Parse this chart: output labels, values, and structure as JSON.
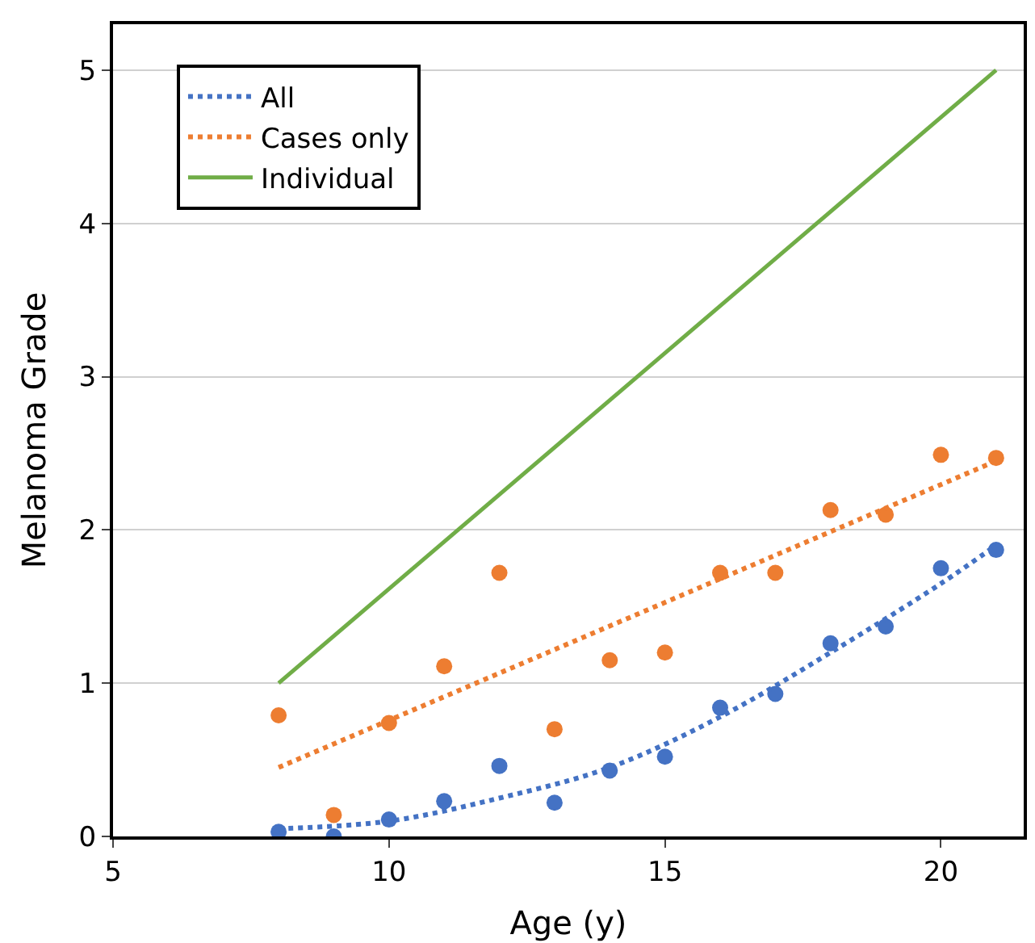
{
  "chart_data": {
    "type": "scatter",
    "xlabel": "Age (y)",
    "ylabel": "Melanoma Grade",
    "xlim": [
      5,
      21.5
    ],
    "ylim": [
      0,
      5.3
    ],
    "xticks": [
      5,
      10,
      15,
      20
    ],
    "yticks": [
      0,
      1,
      2,
      3,
      4,
      5
    ],
    "grid": "y",
    "legend": "top left",
    "series": [
      {
        "marker": "circle",
        "color": "#4472c4",
        "x": [
          8,
          9,
          10,
          11,
          12,
          13,
          14,
          15,
          16,
          17,
          18,
          19,
          20,
          21
        ],
        "values": [
          0.03,
          0.0,
          0.11,
          0.23,
          0.46,
          0.22,
          0.43,
          0.52,
          0.84,
          0.93,
          1.26,
          1.37,
          1.75,
          1.87
        ]
      },
      {
        "marker": "circle",
        "color": "#ed7d31",
        "x": [
          8,
          9,
          10,
          11,
          12,
          13,
          14,
          15,
          16,
          17,
          18,
          19,
          20,
          21
        ],
        "values": [
          0.79,
          0.14,
          0.74,
          1.11,
          1.72,
          0.7,
          1.15,
          1.2,
          1.72,
          1.72,
          2.13,
          2.1,
          2.49,
          2.47
        ]
      },
      {
        "type": "line",
        "name": "All",
        "line_style": "dotted",
        "color": "#4472c4",
        "x": [
          8,
          10,
          12,
          14,
          16,
          18,
          20,
          21
        ],
        "values": [
          0.05,
          0.1,
          0.25,
          0.45,
          0.78,
          1.2,
          1.65,
          1.9
        ]
      },
      {
        "type": "line",
        "name": "Cases only",
        "line_style": "dotted",
        "color": "#ed7d31",
        "x": [
          8,
          21
        ],
        "values": [
          0.45,
          2.45
        ]
      },
      {
        "type": "line",
        "name": "Individual",
        "line_style": "solid",
        "color": "#70ad47",
        "x": [
          8,
          21
        ],
        "values": [
          1,
          5
        ]
      }
    ]
  }
}
